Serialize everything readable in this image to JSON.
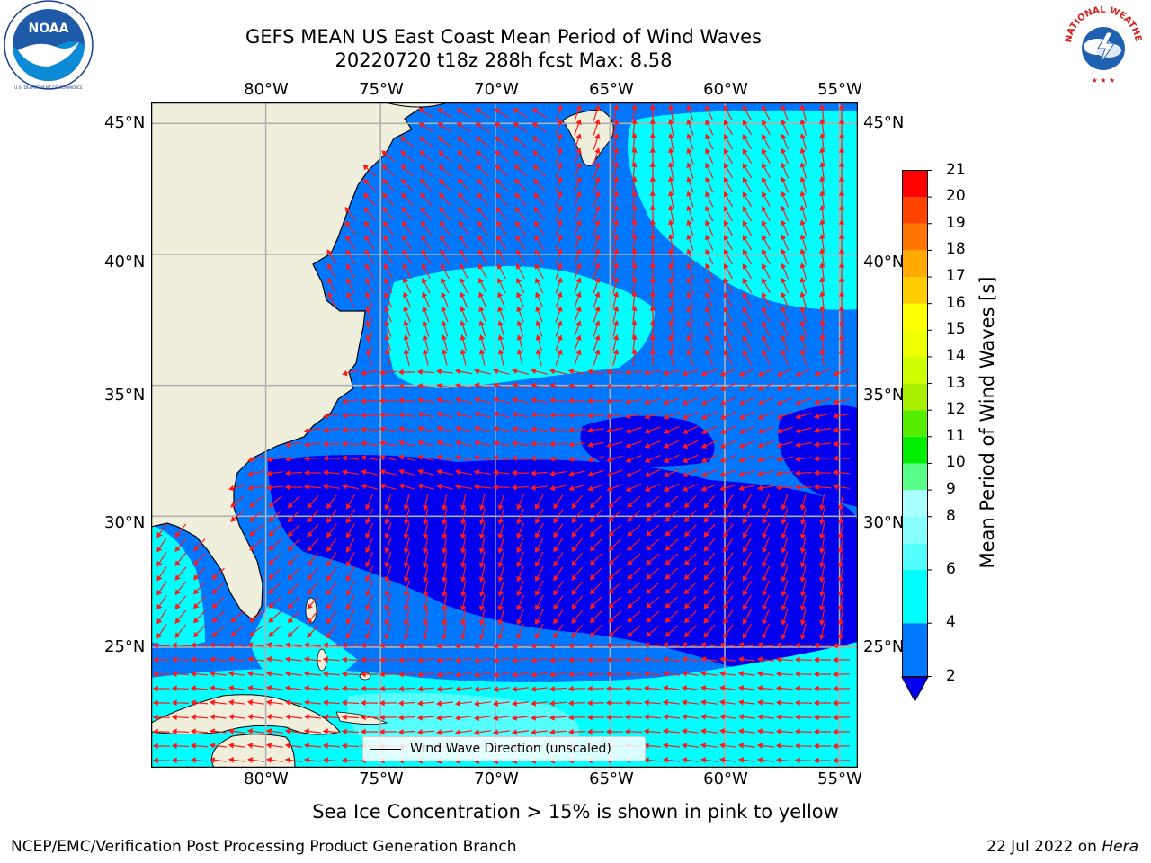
{
  "title": {
    "line1": "GEFS MEAN US East Coast Mean Period of Wind Waves",
    "line2": "20220720 t18z 288h fcst   Max: 8.58"
  },
  "logos": {
    "left": {
      "text": "NOAA",
      "ring_text": "NATIONAL OCEANIC AND ATMOSPHERIC ADMINISTRATION · U.S. DEPARTMENT OF COMMERCE"
    },
    "right": {
      "ring_text": "NATIONAL WEATHER SERVICE"
    }
  },
  "map": {
    "lon_ticks": [
      "80°W",
      "75°W",
      "70°W",
      "65°W",
      "60°W",
      "55°W"
    ],
    "lon_values": [
      -80,
      -75,
      -70,
      -65,
      -60,
      -55
    ],
    "lat_ticks": [
      "45°N",
      "40°N",
      "35°N",
      "30°N",
      "25°N"
    ],
    "lat_values": [
      45,
      40,
      35,
      30,
      25
    ],
    "extent": {
      "lon_min": -85,
      "lon_max": -54.2,
      "lat_min": 20.4,
      "lat_max": 45.8
    },
    "colors": {
      "land": "#efefdc",
      "gridline": "#b0b0b0",
      "arrow": "#ff1a1a",
      "bin_2_4": "#0077ff",
      "bin_below_2": "#0000ee",
      "bin_4_6": "#00ffff",
      "bin_6_8": "#55ffff"
    },
    "legend": {
      "label": "Wind Wave Direction (unscaled)"
    }
  },
  "colorbar": {
    "label": "Mean Period of Wind Waves [s]",
    "tick_labels": [
      "21",
      "20",
      "19",
      "18",
      "17",
      "16",
      "15",
      "14",
      "13",
      "12",
      "11",
      "10",
      "9",
      "8",
      "6",
      "4",
      "2"
    ],
    "bins": [
      {
        "from": 2,
        "to": 4,
        "color": "#0077ff"
      },
      {
        "from": 4,
        "to": 6,
        "color": "#00ffff"
      },
      {
        "from": 6,
        "to": 7,
        "color": "#55ffff"
      },
      {
        "from": 7,
        "to": 8,
        "color": "#88ffff"
      },
      {
        "from": 8,
        "to": 9,
        "color": "#aaffff"
      },
      {
        "from": 9,
        "to": 10,
        "color": "#55ff88"
      },
      {
        "from": 10,
        "to": 11,
        "color": "#00ee00"
      },
      {
        "from": 11,
        "to": 12,
        "color": "#55ee00"
      },
      {
        "from": 12,
        "to": 13,
        "color": "#aaee00"
      },
      {
        "from": 13,
        "to": 14,
        "color": "#ccff00"
      },
      {
        "from": 14,
        "to": 15,
        "color": "#eeff00"
      },
      {
        "from": 15,
        "to": 16,
        "color": "#ffff00"
      },
      {
        "from": 16,
        "to": 17,
        "color": "#ffcc00"
      },
      {
        "from": 17,
        "to": 18,
        "color": "#ffaa00"
      },
      {
        "from": 18,
        "to": 19,
        "color": "#ff7700"
      },
      {
        "from": 19,
        "to": 20,
        "color": "#ff4400"
      },
      {
        "from": 20,
        "to": 21,
        "color": "#ff0000"
      }
    ],
    "under_color": "#0000ee"
  },
  "note": "Sea Ice Concentration > 15% is shown in pink to yellow",
  "footer": {
    "left": "NCEP/EMC/Verification Post Processing Product Generation Branch",
    "right_prefix": "22 Jul 2022 on ",
    "right_machine": "Hera"
  }
}
